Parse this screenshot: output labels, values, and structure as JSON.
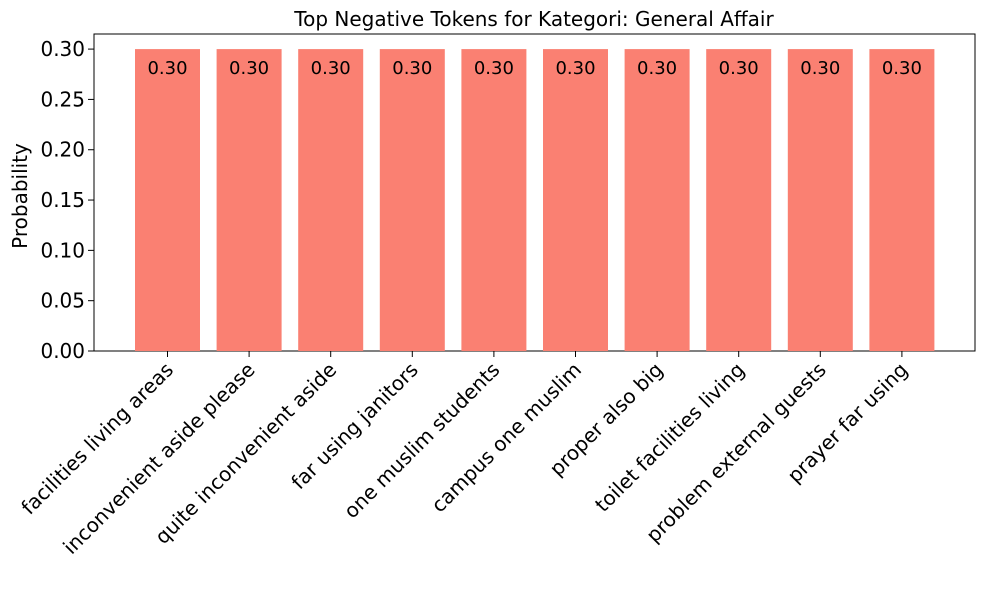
{
  "chart_data": {
    "type": "bar",
    "title": "Top Negative Tokens for Kategori: General Affair",
    "xlabel": "",
    "ylabel": "Probability",
    "categories": [
      "facilities living areas",
      "inconvenient aside please",
      "quite inconvenient aside",
      "far using janitors",
      "one muslim students",
      "campus one muslim",
      "proper also big",
      "toilet facilities living",
      "problem external guests",
      "prayer far using"
    ],
    "values": [
      0.3,
      0.3,
      0.3,
      0.3,
      0.3,
      0.3,
      0.3,
      0.3,
      0.3,
      0.3
    ],
    "value_labels": [
      "0.30",
      "0.30",
      "0.30",
      "0.30",
      "0.30",
      "0.30",
      "0.30",
      "0.30",
      "0.30",
      "0.30"
    ],
    "ylim": [
      0,
      0.315
    ],
    "yticks": [
      0.0,
      0.05,
      0.1,
      0.15,
      0.2,
      0.25,
      0.3
    ],
    "ytick_labels": [
      "0.00",
      "0.05",
      "0.10",
      "0.15",
      "0.20",
      "0.25",
      "0.30"
    ],
    "grid": false,
    "bar_color": "#fa8072",
    "x_tick_rotation": 45
  }
}
